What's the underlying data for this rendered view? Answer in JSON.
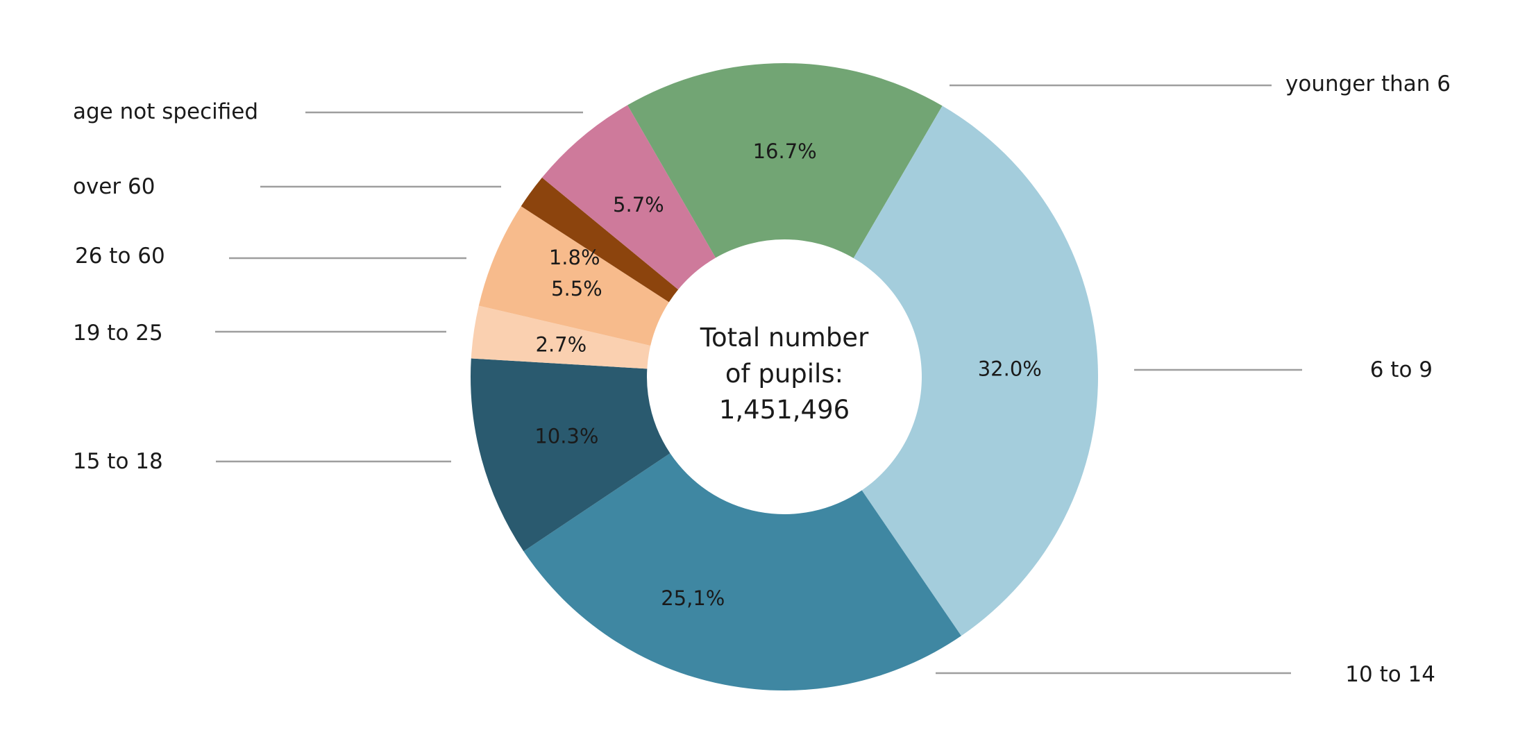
{
  "chart_data": {
    "type": "pie",
    "variant": "donut",
    "center_label": [
      "Total number",
      "of pupils:",
      "1,451,496"
    ],
    "slices": [
      {
        "category": "younger than 6",
        "value": 16.7,
        "value_label": "16.7%",
        "color": "#72a574"
      },
      {
        "category": "6 to 9",
        "value": 32.0,
        "value_label": "32.0%",
        "color": "#a4cddc"
      },
      {
        "category": "10 to 14",
        "value": 25.1,
        "value_label": "25,1%",
        "color": "#3f87a2"
      },
      {
        "category": "15 to 18",
        "value": 10.3,
        "value_label": "10.3%",
        "color": "#2a5a6f"
      },
      {
        "category": "19 to 25",
        "value": 2.7,
        "value_label": "2.7%",
        "color": "#fad0b0"
      },
      {
        "category": "26 to 60",
        "value": 5.5,
        "value_label": "5.5%",
        "color": "#f7bb8c"
      },
      {
        "category": "over 60",
        "value": 1.8,
        "value_label": "1.8%",
        "color": "#8c440d"
      },
      {
        "category": "age not specified",
        "value": 5.7,
        "value_label": "5.7%",
        "color": "#ce7a9b"
      }
    ],
    "legend": "external labels with leader lines"
  }
}
